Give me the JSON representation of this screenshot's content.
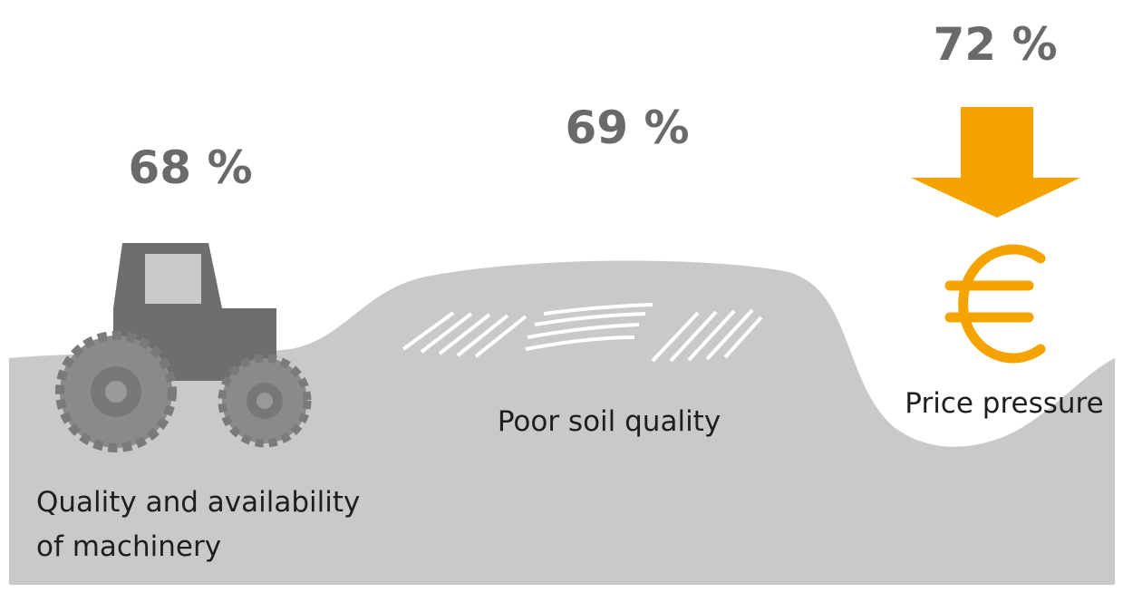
{
  "items": [
    {
      "value": "68 %",
      "label": [
        "Quality and availability",
        "of machinery"
      ]
    },
    {
      "value": "69 %",
      "label": [
        "Poor soil quality"
      ]
    },
    {
      "value": "72 %",
      "label": [
        "Price pressure"
      ]
    }
  ]
}
